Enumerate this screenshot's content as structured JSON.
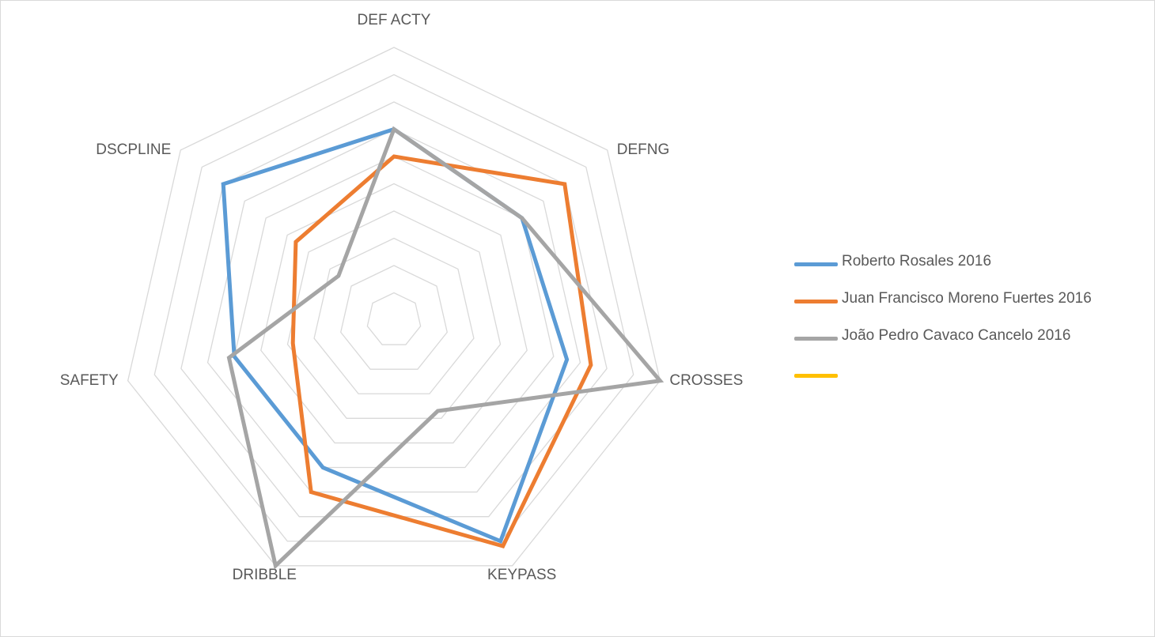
{
  "chart_data": {
    "type": "radar",
    "title": "",
    "axes": [
      "DEF ACTY",
      "DEFNG",
      "CROSSES",
      "KEYPASS",
      "DRIBBLE",
      "SAFETY",
      "DSCPLINE"
    ],
    "rlim": [
      0,
      10
    ],
    "ticks": [
      1,
      2,
      3,
      4,
      5,
      6,
      7,
      8,
      9,
      10
    ],
    "grid": true,
    "legend_position": "right",
    "series": [
      {
        "name": "Roberto Rosales 2016",
        "color": "#5b9bd5",
        "values": [
          7,
          6,
          6.5,
          9,
          6,
          6,
          8
        ]
      },
      {
        "name": "Juan Francisco Moreno Fuertes 2016",
        "color": "#ed7d31",
        "values": [
          6,
          8,
          7.4,
          9.2,
          7,
          3.8,
          4.6
        ]
      },
      {
        "name": "João Pedro Cavaco Cancelo 2016",
        "color": "#a5a5a5",
        "values": [
          7,
          6,
          10,
          3.7,
          10,
          6.2,
          2.6
        ]
      },
      {
        "name": "",
        "color": "#ffc000",
        "values": []
      }
    ]
  }
}
